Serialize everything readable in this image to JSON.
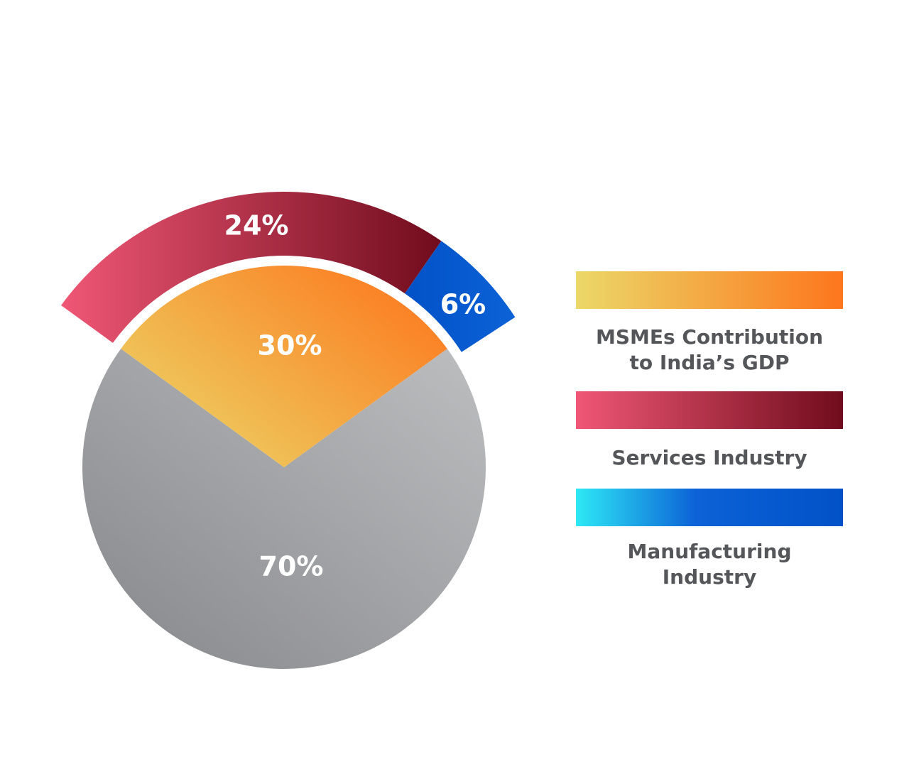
{
  "chart_data": {
    "type": "pie",
    "slices": [
      {
        "label": "70%",
        "value": 70,
        "series": "gdp_rest"
      },
      {
        "label": "30%",
        "value": 30,
        "series": "msme"
      },
      {
        "label": "24%",
        "value": 24,
        "series": "services"
      },
      {
        "label": "6%",
        "value": 6,
        "series": "manufacturing"
      }
    ],
    "legend": [
      {
        "key": "msme",
        "lines": [
          "MSMEs Contribution",
          "to India’s GDP"
        ]
      },
      {
        "key": "services",
        "lines": [
          "Services Industry"
        ]
      },
      {
        "key": "manufacturing",
        "lines": [
          "Manufacturing",
          "Industry"
        ]
      }
    ],
    "legend_position": "right",
    "gradients": {
      "gdp_rest": [
        "#bdbec0",
        "#86878b"
      ],
      "msme": [
        "#ebd868",
        "#fd761d"
      ],
      "services": [
        "#ef5775",
        "#700c1d"
      ],
      "manufacturing": [
        "#2ee8f5",
        "#0c62d6",
        "#0251c7"
      ]
    }
  }
}
